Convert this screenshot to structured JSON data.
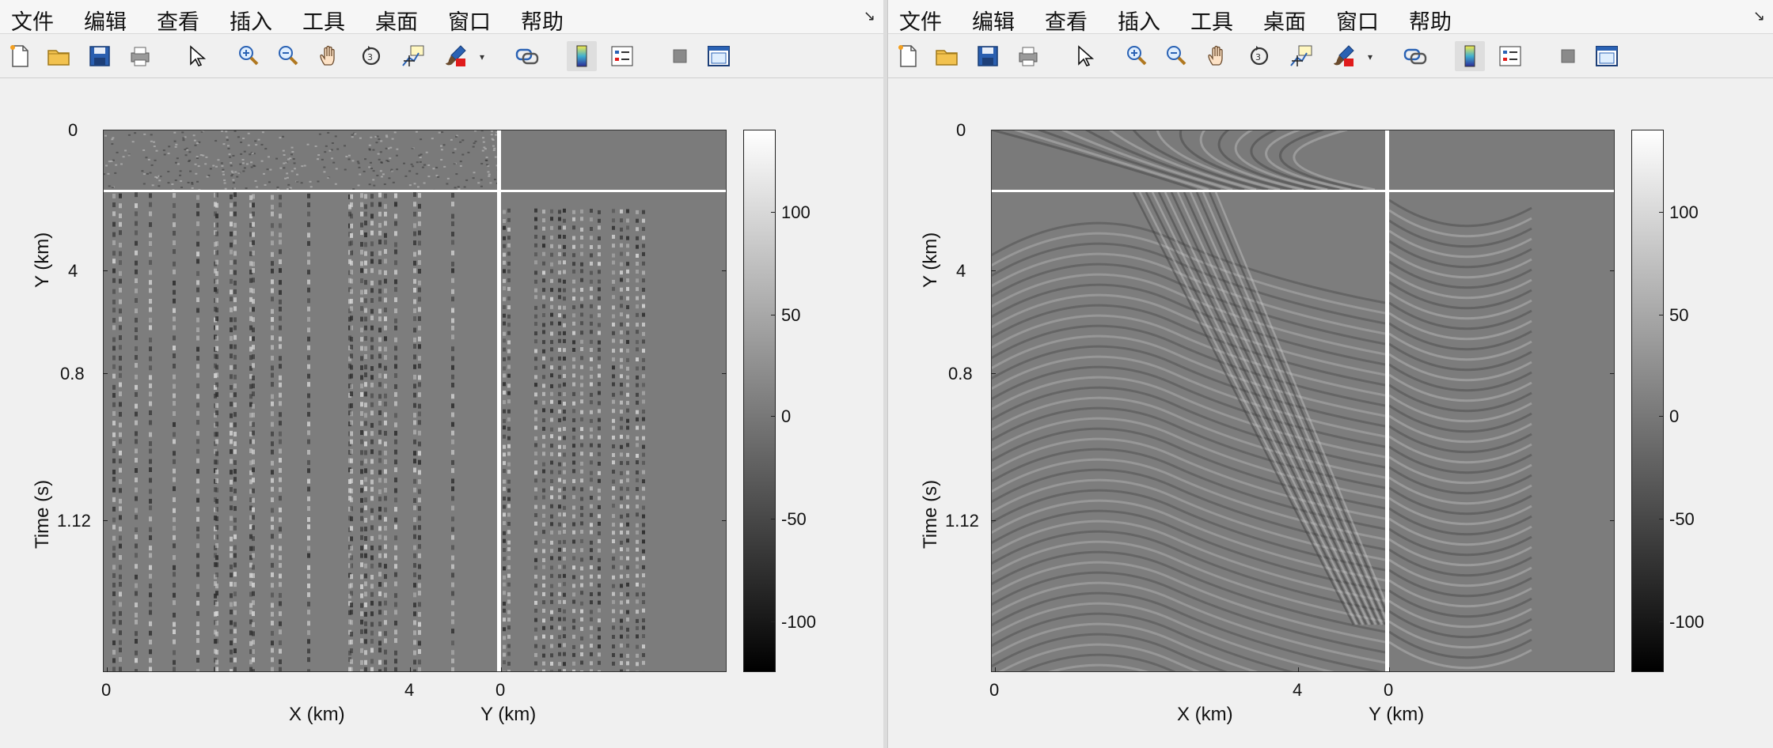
{
  "menus": [
    "文件",
    "编辑",
    "查看",
    "插入",
    "工具",
    "桌面",
    "窗口",
    "帮助"
  ],
  "toolbar": {
    "buttons": [
      {
        "name": "new-figure-icon",
        "icon": "new-file-icon"
      },
      {
        "name": "open-file-icon",
        "icon": "folder-icon"
      },
      {
        "name": "save-icon",
        "icon": "floppy-icon"
      },
      {
        "name": "print-icon",
        "icon": "printer-icon"
      },
      {
        "name": "edit-plot-icon",
        "icon": "pointer-arrow-icon"
      },
      {
        "name": "zoom-in-icon",
        "icon": "magnifier-plus-icon"
      },
      {
        "name": "zoom-out-icon",
        "icon": "magnifier-minus-icon"
      },
      {
        "name": "pan-icon",
        "icon": "hand-icon"
      },
      {
        "name": "rotate-3d-icon",
        "icon": "rotate-icon"
      },
      {
        "name": "data-cursor-icon",
        "icon": "data-tip-icon"
      },
      {
        "name": "brush-icon",
        "icon": "paintbrush-icon"
      },
      {
        "name": "link-plot-icon",
        "icon": "link-icon"
      },
      {
        "name": "insert-colorbar-icon",
        "icon": "colorbar-icon"
      },
      {
        "name": "insert-legend-icon",
        "icon": "legend-icon"
      },
      {
        "name": "hide-plot-tools-icon",
        "icon": "grey-square-icon"
      },
      {
        "name": "show-plot-tools-icon",
        "icon": "window-icon"
      }
    ]
  },
  "figures": [
    {
      "id": "left",
      "y_ticks_top": [
        "0"
      ],
      "y_ticks_main": [
        "4",
        "0.8",
        "1.12"
      ],
      "y_label_top": "Y (km)",
      "y_label_main": "Time (s)",
      "x_ticks": [
        "0",
        "4",
        "0"
      ],
      "x_label": "X (km)",
      "y_label_bottom": "Y (km)",
      "colorbar_ticks": [
        "100",
        "50",
        "0",
        "-50",
        "-100"
      ]
    },
    {
      "id": "right",
      "y_ticks_top": [
        "0"
      ],
      "y_ticks_main": [
        "4",
        "0.8",
        "1.12"
      ],
      "y_label_top": "Y (km)",
      "y_label_main": "Time (s)",
      "x_ticks": [
        "0",
        "4",
        "0"
      ],
      "x_label": "X (km)",
      "y_label_bottom": "Y (km)",
      "colorbar_ticks": [
        "100",
        "50",
        "0",
        "-50",
        "-100"
      ]
    }
  ],
  "colors": {
    "panel_gray": "#7d7d7d",
    "separator": "#ffffff",
    "window_bg": "#f0f0f0"
  }
}
